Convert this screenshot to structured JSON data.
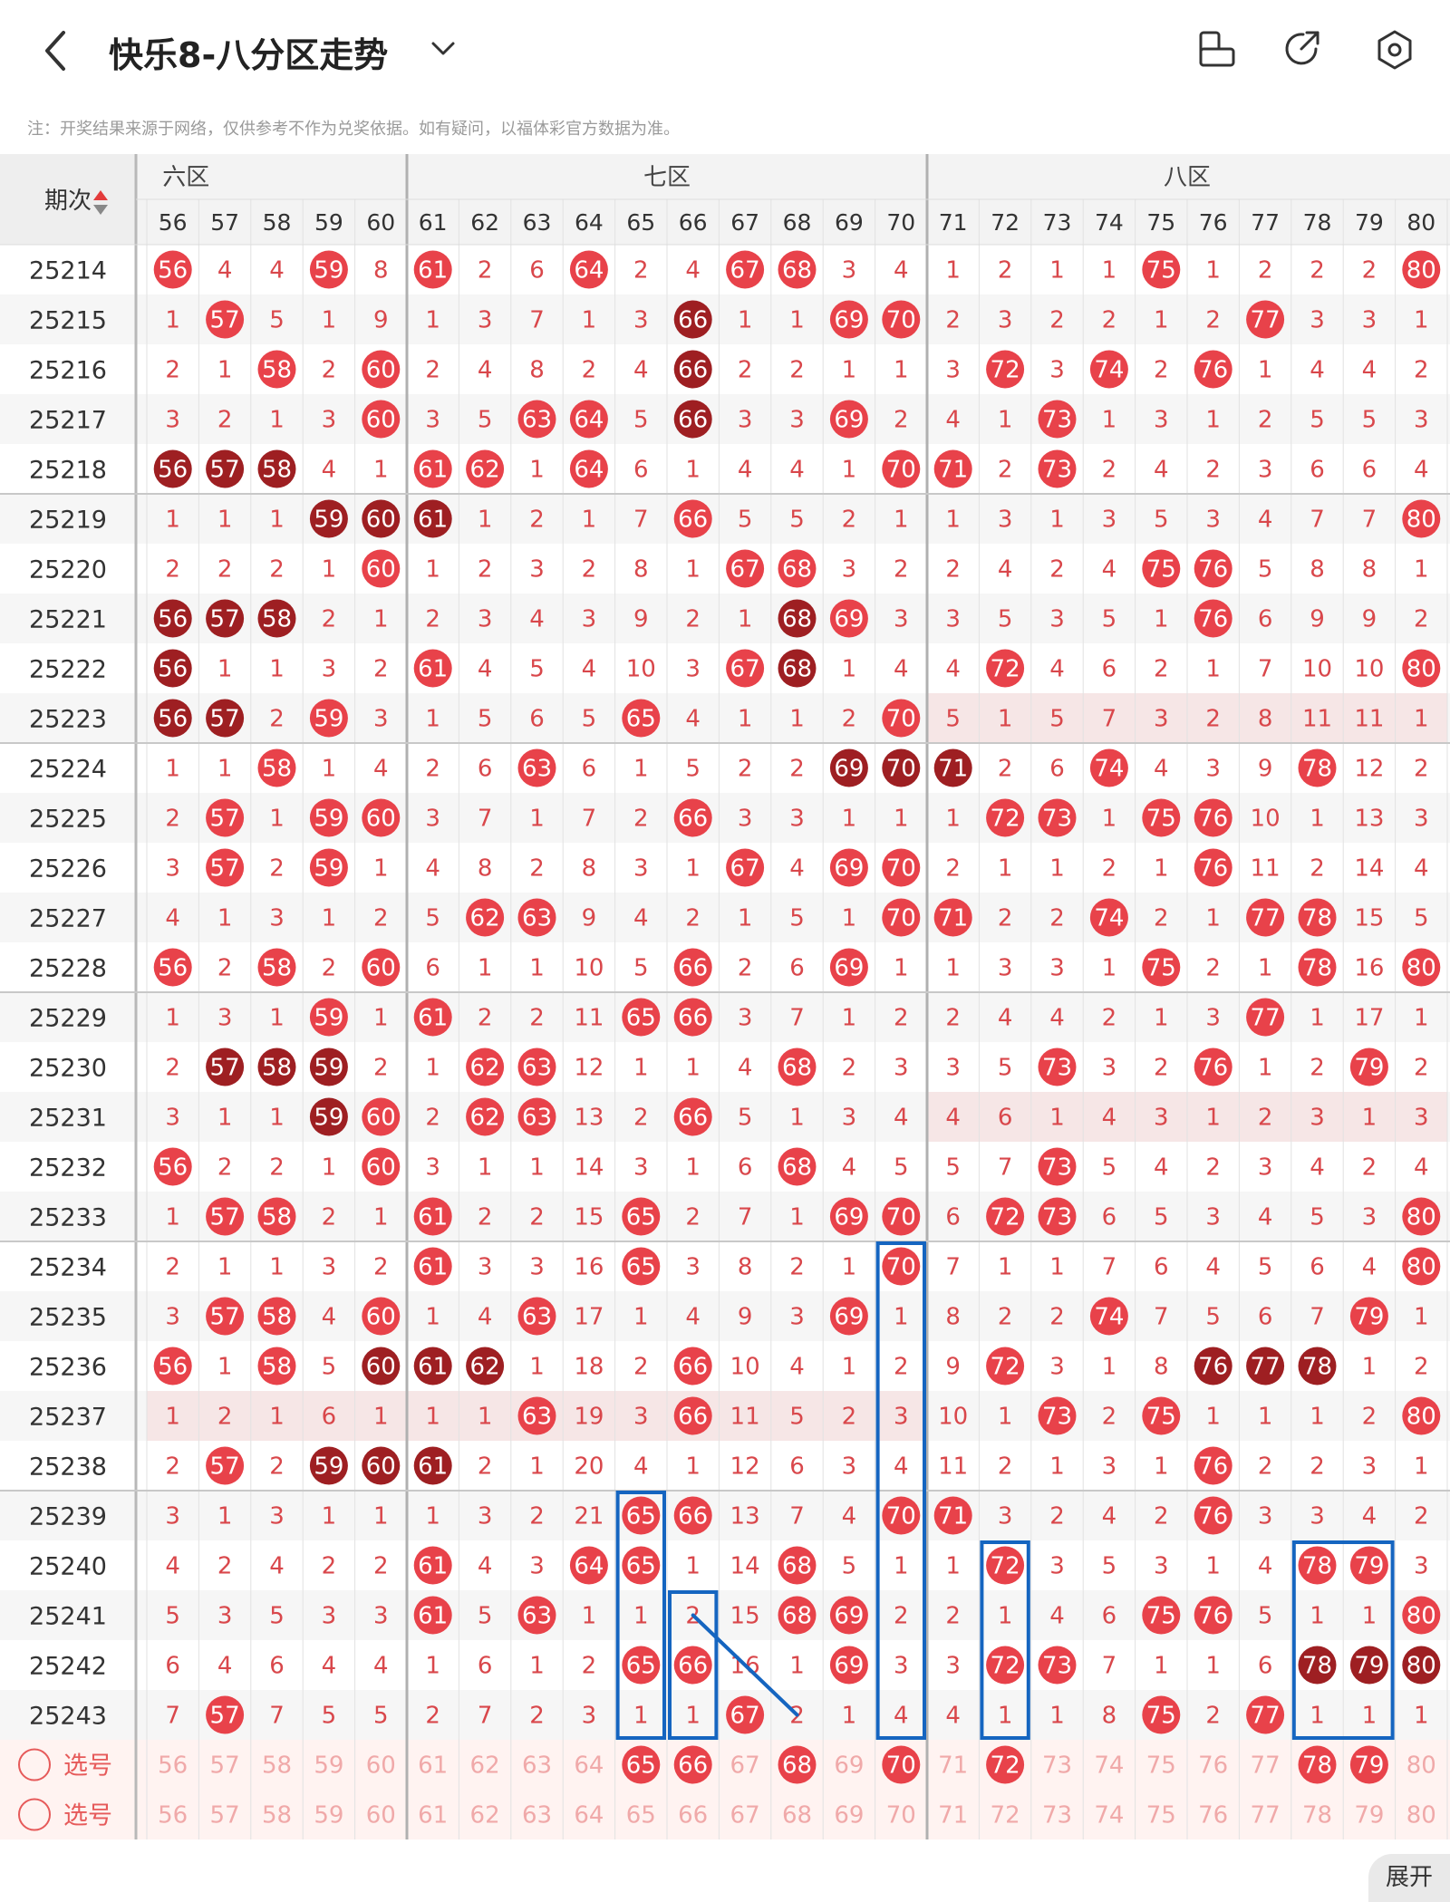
{
  "header": {
    "title": "快乐8-八分区走势",
    "back_icon": "chevron-left-icon",
    "dropdown_icon": "chevron-down-icon",
    "icons": [
      "phone-landscape-icon",
      "share-icon",
      "settings-icon"
    ]
  },
  "note": "注：开奖结果来源于网络，仅供参考不作为兑奖依据。如有疑问，以福体彩官方数据为准。",
  "table": {
    "period_header": "期次",
    "zone_labels": [
      "六区",
      "七区",
      "八区"
    ],
    "columns": [
      "56",
      "57",
      "58",
      "59",
      "60",
      "61",
      "62",
      "63",
      "64",
      "65",
      "66",
      "67",
      "68",
      "69",
      "70",
      "71",
      "72",
      "73",
      "74",
      "75",
      "76",
      "77",
      "78",
      "79",
      "80"
    ],
    "rows": [
      {
        "period": "25214",
        "cells": [
          56,
          4,
          4,
          59,
          8,
          61,
          2,
          6,
          64,
          2,
          4,
          67,
          68,
          3,
          4,
          1,
          2,
          1,
          1,
          75,
          1,
          2,
          2,
          2,
          80
        ]
      },
      {
        "period": "25215",
        "cells": [
          1,
          57,
          5,
          1,
          9,
          1,
          3,
          7,
          1,
          3,
          66,
          1,
          1,
          69,
          70,
          2,
          3,
          2,
          2,
          1,
          2,
          77,
          3,
          3,
          1
        ]
      },
      {
        "period": "25216",
        "cells": [
          2,
          1,
          58,
          2,
          60,
          2,
          4,
          8,
          2,
          4,
          66,
          2,
          2,
          1,
          1,
          3,
          72,
          3,
          74,
          2,
          76,
          1,
          4,
          4,
          2
        ]
      },
      {
        "period": "25217",
        "cells": [
          3,
          2,
          1,
          3,
          60,
          3,
          5,
          63,
          64,
          5,
          66,
          3,
          3,
          69,
          2,
          4,
          1,
          73,
          1,
          3,
          1,
          2,
          5,
          5,
          3
        ]
      },
      {
        "period": "25218",
        "cells": [
          56,
          57,
          58,
          4,
          1,
          61,
          62,
          1,
          64,
          6,
          1,
          4,
          4,
          1,
          70,
          71,
          2,
          73,
          2,
          4,
          2,
          3,
          6,
          6,
          4
        ]
      },
      {
        "period": "25219",
        "cells": [
          1,
          1,
          1,
          59,
          60,
          61,
          1,
          2,
          1,
          7,
          66,
          5,
          5,
          2,
          1,
          1,
          3,
          1,
          3,
          5,
          3,
          4,
          7,
          7,
          80
        ]
      },
      {
        "period": "25220",
        "cells": [
          2,
          2,
          2,
          1,
          60,
          1,
          2,
          3,
          2,
          8,
          1,
          67,
          68,
          3,
          2,
          2,
          4,
          2,
          4,
          75,
          76,
          5,
          8,
          8,
          1
        ]
      },
      {
        "period": "25221",
        "cells": [
          56,
          57,
          58,
          2,
          1,
          2,
          3,
          4,
          3,
          9,
          2,
          1,
          68,
          69,
          3,
          3,
          5,
          3,
          5,
          1,
          76,
          6,
          9,
          9,
          2
        ]
      },
      {
        "period": "25222",
        "cells": [
          56,
          1,
          1,
          3,
          2,
          61,
          4,
          5,
          4,
          10,
          3,
          67,
          68,
          1,
          4,
          4,
          72,
          4,
          6,
          2,
          1,
          7,
          10,
          10,
          80
        ]
      },
      {
        "period": "25223",
        "cells": [
          56,
          57,
          2,
          59,
          3,
          1,
          5,
          6,
          5,
          65,
          4,
          1,
          1,
          2,
          70,
          5,
          1,
          5,
          7,
          3,
          2,
          8,
          11,
          11,
          1
        ]
      },
      {
        "period": "25224",
        "cells": [
          1,
          1,
          58,
          1,
          4,
          2,
          6,
          63,
          6,
          1,
          5,
          2,
          2,
          69,
          70,
          71,
          2,
          6,
          74,
          4,
          3,
          9,
          78,
          12,
          2
        ]
      },
      {
        "period": "25225",
        "cells": [
          2,
          57,
          1,
          59,
          60,
          3,
          7,
          1,
          7,
          2,
          66,
          3,
          3,
          1,
          1,
          1,
          72,
          73,
          1,
          75,
          76,
          10,
          1,
          13,
          3
        ]
      },
      {
        "period": "25226",
        "cells": [
          3,
          57,
          2,
          59,
          1,
          4,
          8,
          2,
          8,
          3,
          1,
          67,
          4,
          69,
          70,
          2,
          1,
          1,
          2,
          1,
          76,
          11,
          2,
          14,
          4
        ]
      },
      {
        "period": "25227",
        "cells": [
          4,
          1,
          3,
          1,
          2,
          5,
          62,
          63,
          9,
          4,
          2,
          1,
          5,
          1,
          70,
          71,
          2,
          2,
          74,
          2,
          1,
          77,
          78,
          15,
          5
        ]
      },
      {
        "period": "25228",
        "cells": [
          56,
          2,
          58,
          2,
          60,
          6,
          1,
          1,
          10,
          5,
          66,
          2,
          6,
          69,
          1,
          1,
          3,
          3,
          1,
          75,
          2,
          1,
          78,
          16,
          80
        ]
      },
      {
        "period": "25229",
        "cells": [
          1,
          3,
          1,
          59,
          1,
          61,
          2,
          2,
          11,
          65,
          66,
          3,
          7,
          1,
          2,
          2,
          4,
          4,
          2,
          1,
          3,
          77,
          1,
          17,
          1
        ]
      },
      {
        "period": "25230",
        "cells": [
          2,
          57,
          58,
          59,
          2,
          1,
          62,
          63,
          12,
          1,
          1,
          4,
          68,
          2,
          3,
          3,
          5,
          73,
          3,
          2,
          76,
          1,
          2,
          79,
          2
        ]
      },
      {
        "period": "25231",
        "cells": [
          3,
          1,
          1,
          59,
          60,
          2,
          62,
          63,
          13,
          2,
          66,
          5,
          1,
          3,
          4,
          4,
          6,
          1,
          4,
          3,
          1,
          2,
          3,
          1,
          3
        ]
      },
      {
        "period": "25232",
        "cells": [
          56,
          2,
          2,
          1,
          60,
          3,
          1,
          1,
          14,
          3,
          1,
          6,
          68,
          4,
          5,
          5,
          7,
          73,
          5,
          4,
          2,
          3,
          4,
          2,
          4
        ]
      },
      {
        "period": "25233",
        "cells": [
          1,
          57,
          58,
          2,
          1,
          61,
          2,
          2,
          15,
          65,
          2,
          7,
          1,
          69,
          70,
          6,
          72,
          73,
          6,
          5,
          3,
          4,
          5,
          3,
          80
        ]
      },
      {
        "period": "25234",
        "cells": [
          2,
          1,
          1,
          3,
          2,
          61,
          3,
          3,
          16,
          65,
          3,
          8,
          2,
          1,
          70,
          7,
          1,
          1,
          7,
          6,
          4,
          5,
          6,
          4,
          80
        ]
      },
      {
        "period": "25235",
        "cells": [
          3,
          57,
          58,
          4,
          60,
          1,
          4,
          63,
          17,
          1,
          4,
          9,
          3,
          69,
          1,
          8,
          2,
          2,
          74,
          7,
          5,
          6,
          7,
          79,
          1
        ]
      },
      {
        "period": "25236",
        "cells": [
          56,
          1,
          58,
          5,
          60,
          61,
          62,
          1,
          18,
          2,
          66,
          10,
          4,
          1,
          2,
          9,
          72,
          3,
          1,
          8,
          76,
          77,
          78,
          1,
          2
        ]
      },
      {
        "period": "25237",
        "cells": [
          1,
          2,
          1,
          6,
          1,
          1,
          1,
          63,
          19,
          3,
          66,
          11,
          5,
          2,
          3,
          10,
          1,
          73,
          2,
          75,
          1,
          1,
          1,
          2,
          80
        ]
      },
      {
        "period": "25238",
        "cells": [
          2,
          57,
          2,
          59,
          60,
          61,
          2,
          1,
          20,
          4,
          1,
          12,
          6,
          3,
          4,
          11,
          2,
          1,
          3,
          1,
          76,
          2,
          2,
          3,
          1
        ]
      },
      {
        "period": "25239",
        "cells": [
          3,
          1,
          3,
          1,
          1,
          1,
          3,
          2,
          21,
          65,
          66,
          13,
          7,
          4,
          70,
          71,
          3,
          2,
          4,
          2,
          76,
          3,
          3,
          4,
          2
        ]
      },
      {
        "period": "25240",
        "cells": [
          4,
          2,
          4,
          2,
          2,
          61,
          4,
          3,
          64,
          65,
          1,
          14,
          68,
          5,
          1,
          1,
          72,
          3,
          5,
          3,
          1,
          4,
          78,
          79,
          3
        ]
      },
      {
        "period": "25241",
        "cells": [
          5,
          3,
          5,
          3,
          3,
          61,
          5,
          63,
          1,
          1,
          2,
          15,
          68,
          69,
          2,
          2,
          1,
          4,
          6,
          75,
          76,
          5,
          1,
          1,
          80
        ]
      },
      {
        "period": "25242",
        "cells": [
          6,
          4,
          6,
          4,
          4,
          1,
          6,
          1,
          2,
          65,
          66,
          16,
          1,
          69,
          3,
          3,
          72,
          73,
          7,
          1,
          1,
          6,
          78,
          79,
          80
        ]
      },
      {
        "period": "25243",
        "cells": [
          7,
          57,
          7,
          5,
          5,
          2,
          7,
          2,
          3,
          1,
          1,
          67,
          2,
          1,
          4,
          4,
          1,
          1,
          8,
          75,
          2,
          77,
          1,
          1,
          1
        ]
      }
    ],
    "select_label": "选号",
    "expand_label": "展开",
    "bottom_left_text": "-"
  },
  "colors": {
    "ball_red": "#e8424a",
    "ball_dark": "#9e1f22",
    "number_red": "#d9474b",
    "box_blue": "#1565c0"
  }
}
